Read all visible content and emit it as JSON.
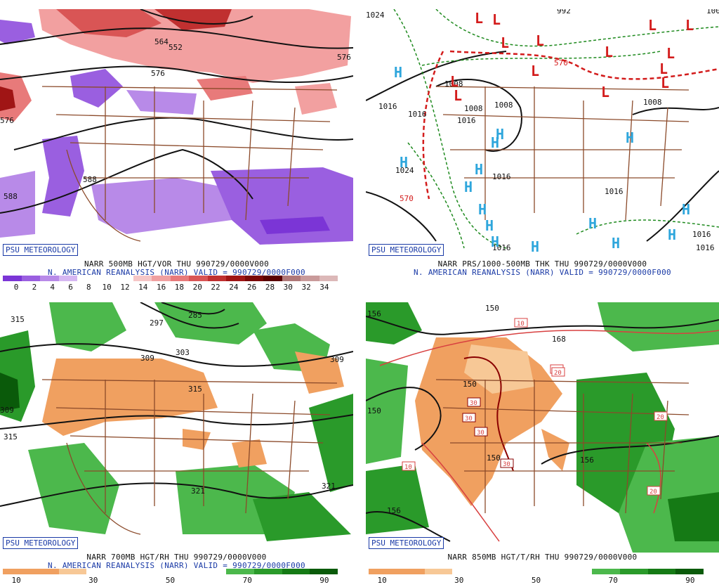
{
  "branding": "PSU METEOROLOGY",
  "panels": [
    {
      "id": "p500",
      "caption_line1": "NARR 500MB HGT/VOR THU 990729/0000V000",
      "caption_line2": "N. AMERICAN REANALYSIS (NARR) VALID = 990729/0000F000",
      "colorbar": {
        "colors": [
          "#7b35d6",
          "#9a5fe0",
          "#b88ae8",
          "#d6b7f2",
          "#ffffff",
          "#ffffff",
          "#ffffff",
          "#f6c6c6",
          "#f0a0a0",
          "#e87a7a",
          "#d95555",
          "#c03030",
          "#a01515",
          "#7a0808",
          "#5a0000",
          "#b07878",
          "#c99a9a",
          "#dcb8b8"
        ],
        "labels": [
          "0",
          "2",
          "4",
          "6",
          "8",
          "10",
          "12",
          "14",
          "16",
          "18",
          "20",
          "22",
          "24",
          "26",
          "28",
          "30",
          "32",
          "34"
        ]
      },
      "contour_labels": [
        "552",
        "564",
        "576",
        "576",
        "588",
        "576",
        "588"
      ]
    },
    {
      "id": "psfc",
      "caption_line1": "NARR PRS/1000-500MB THK THU 990729/0000V000",
      "caption_line2": "N. AMERICAN REANALYSIS (NARR) VALID = 990729/0000F000",
      "pressure_labels": [
        "1024",
        "992",
        "1008",
        "1016",
        "1016",
        "1024",
        "1008",
        "1008",
        "1016",
        "1016",
        "1016",
        "1008",
        "1016",
        "1016",
        "1008",
        "1016"
      ],
      "thickness_labels": [
        "570",
        "570"
      ],
      "centers_high": 13,
      "centers_low": 14
    },
    {
      "id": "p700",
      "caption_line1": "NARR 700MB HGT/RH THU 990729/0000V000",
      "caption_line2": "N. AMERICAN REANALYSIS (NARR) VALID = 990729/0000F000",
      "colorbar": {
        "colors": [
          "#f0a060",
          "#f0a060",
          "#f7c896",
          "#ffffff",
          "#ffffff",
          "#ffffff",
          "#ffffff",
          "#ffffff",
          "#4cb84c",
          "#2a9a2a",
          "#157a15",
          "#0a5a0a"
        ],
        "labels": [
          "10",
          "30",
          "50",
          "70",
          "90"
        ]
      },
      "contour_labels": [
        "315",
        "309",
        "303",
        "309",
        "315",
        "309",
        "315",
        "321",
        "321",
        "297",
        "285"
      ]
    },
    {
      "id": "p850",
      "caption_line1": "NARR 850MB HGT/T/RH THU 990729/0000V000",
      "caption_line2": "",
      "colorbar": {
        "colors": [
          "#f0a060",
          "#f0a060",
          "#f7c896",
          "#ffffff",
          "#ffffff",
          "#ffffff",
          "#ffffff",
          "#ffffff",
          "#4cb84c",
          "#2a9a2a",
          "#157a15",
          "#0a5a0a"
        ],
        "labels": [
          "10",
          "30",
          "50",
          "70",
          "90"
        ]
      },
      "contour_labels": [
        "156",
        "150",
        "150",
        "150",
        "156",
        "156",
        "168",
        "150"
      ],
      "temp_labels": [
        "10",
        "20",
        "30",
        "30",
        "30",
        "30",
        "20",
        "20",
        "20",
        "10"
      ]
    }
  ]
}
